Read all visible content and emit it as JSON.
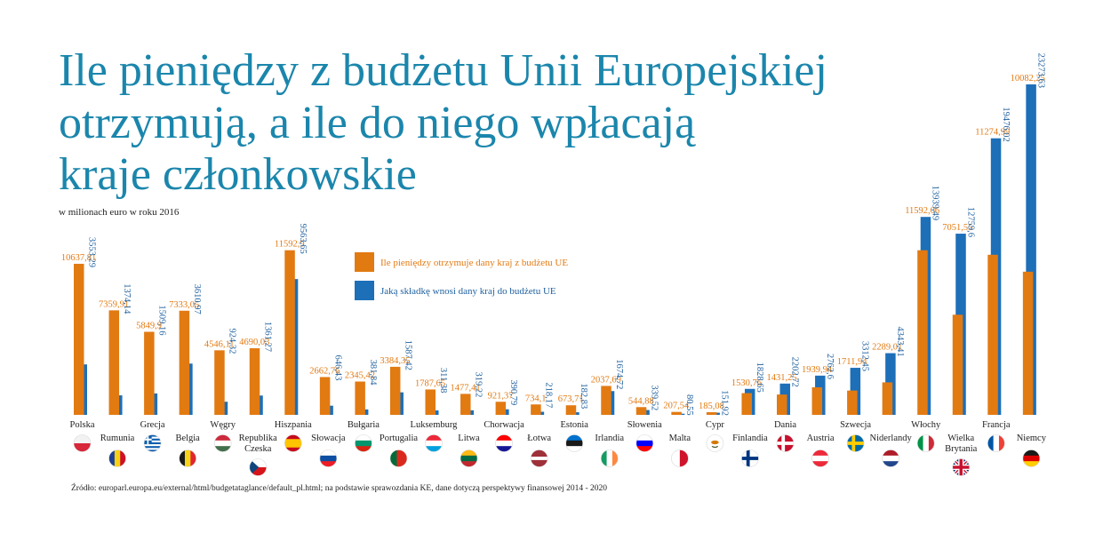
{
  "chart_data": {
    "type": "bar",
    "title_lines": [
      "Ile pieniędzy z budżetu Unii Europejskiej",
      "otrzymują, a ile do niego wpłacają",
      "kraje członkowskie"
    ],
    "subtitle": "w milionach euro w roku 2016",
    "legend": [
      {
        "label": "Ile pieniędzy otrzymuje dany kraj z budżetu UE",
        "color": "#e27a12"
      },
      {
        "label": "Jaką składkę wnosi dany kraj do budżetu UE",
        "color": "#1d6fb8"
      }
    ],
    "source": "Źródło: europarl.europa.eu/external/html/budgetataglance/default_pl.html; na podstawie sprawozdania KE, dane dotyczą perspektywy finansowej 2014 - 2020",
    "colors": {
      "received": "#e27a12",
      "contributed": "#1d6fb8",
      "title": "#1b86ac"
    },
    "categories": [
      {
        "name": "Polska",
        "name_lines": [
          "Polska"
        ],
        "received": 10637.81,
        "contributed": 3553.29,
        "received_label": "10637,81",
        "contributed_label": "3553,29",
        "flag": "poland-flag-icon"
      },
      {
        "name": "Rumunia",
        "name_lines": [
          "Rumunia"
        ],
        "received": 7359.91,
        "contributed": 1374.14,
        "received_label": "7359,91",
        "contributed_label": "1374,14",
        "flag": "romania-flag-icon"
      },
      {
        "name": "Grecja",
        "name_lines": [
          "Grecja"
        ],
        "received": 5849.9,
        "contributed": 1509.16,
        "received_label": "5849,9",
        "contributed_label": "1509,16",
        "flag": "greece-flag-icon"
      },
      {
        "name": "Belgia",
        "name_lines": [
          "Belgia"
        ],
        "received": 7333.05,
        "contributed": 3610.97,
        "received_label": "7333,05",
        "contributed_label": "3610,97",
        "flag": "belgium-flag-icon"
      },
      {
        "name": "Węgry",
        "name_lines": [
          "Węgry"
        ],
        "received": 4546.11,
        "contributed": 924.32,
        "received_label": "4546,11",
        "contributed_label": "924,32",
        "flag": "hungary-flag-icon"
      },
      {
        "name": "Republika Czeska",
        "name_lines": [
          "Republika",
          "Czeska"
        ],
        "received": 4690.03,
        "contributed": 1361.27,
        "received_label": "4690,03",
        "contributed_label": "1361,27",
        "flag": "czech-flag-icon"
      },
      {
        "name": "Hiszpania",
        "name_lines": [
          "Hiszpania"
        ],
        "received": 11592.9,
        "contributed": 9563.65,
        "received_label": "11592,9",
        "contributed_label": "9563,65",
        "flag": "spain-flag-icon"
      },
      {
        "name": "Słowacja",
        "name_lines": [
          "Słowacja"
        ],
        "received": 2662.76,
        "contributed": 646.43,
        "received_label": "2662,76",
        "contributed_label": "646,43",
        "flag": "slovakia-flag-icon"
      },
      {
        "name": "Bułgaria",
        "name_lines": [
          "Bułgaria"
        ],
        "received": 2345.42,
        "contributed": 381.84,
        "received_label": "2345,42",
        "contributed_label": "381,84",
        "flag": "bulgaria-flag-icon"
      },
      {
        "name": "Portugalia",
        "name_lines": [
          "Portugalia"
        ],
        "received": 3384.35,
        "contributed": 1587.42,
        "received_label": "3384,35",
        "contributed_label": "1587,42",
        "flag": "portugal-flag-icon"
      },
      {
        "name": "Luksemburg",
        "name_lines": [
          "Luksemburg"
        ],
        "received": 1787.65,
        "contributed": 311.38,
        "received_label": "1787,65",
        "contributed_label": "311,38",
        "flag": "luxembourg-flag-icon"
      },
      {
        "name": "Litwa",
        "name_lines": [
          "Litwa"
        ],
        "received": 1477.41,
        "contributed": 319.22,
        "received_label": "1477,41",
        "contributed_label": "319,22",
        "flag": "lithuania-flag-icon"
      },
      {
        "name": "Chorwacja",
        "name_lines": [
          "Chorwacja"
        ],
        "received": 921.37,
        "contributed": 390.79,
        "received_label": "921,37",
        "contributed_label": "390,79",
        "flag": "croatia-flag-icon"
      },
      {
        "name": "Łotwa",
        "name_lines": [
          "Łotwa"
        ],
        "received": 734.1,
        "contributed": 218.17,
        "received_label": "734,1",
        "contributed_label": "218,17",
        "flag": "latvia-flag-icon"
      },
      {
        "name": "Estonia",
        "name_lines": [
          "Estonia"
        ],
        "received": 673.71,
        "contributed": 182.83,
        "received_label": "673,71",
        "contributed_label": "182,83",
        "flag": "estonia-flag-icon"
      },
      {
        "name": "Irlandia",
        "name_lines": [
          "Irlandia"
        ],
        "received": 2037.69,
        "contributed": 1674.72,
        "received_label": "2037,69",
        "contributed_label": "1674,72",
        "flag": "ireland-flag-icon"
      },
      {
        "name": "Słowenia",
        "name_lines": [
          "Słowenia"
        ],
        "received": 544.88,
        "contributed": 339.52,
        "received_label": "544,88",
        "contributed_label": "339,52",
        "flag": "slovenia-flag-icon"
      },
      {
        "name": "Malta",
        "name_lines": [
          "Malta"
        ],
        "received": 207.54,
        "contributed": 80.55,
        "received_label": "207,54",
        "contributed_label": "80,55",
        "flag": "malta-flag-icon"
      },
      {
        "name": "Cypr",
        "name_lines": [
          "Cypr"
        ],
        "received": 185.08,
        "contributed": 151.92,
        "received_label": "185,08",
        "contributed_label": "151,92",
        "flag": "cyprus-flag-icon"
      },
      {
        "name": "Finlandia",
        "name_lines": [
          "Finlandia"
        ],
        "received": 1530.76,
        "contributed": 1828.65,
        "received_label": "1530,76",
        "contributed_label": "1828,65",
        "flag": "finland-flag-icon"
      },
      {
        "name": "Dania",
        "name_lines": [
          "Dania"
        ],
        "received": 1431.25,
        "contributed": 2202.72,
        "received_label": "1431,25",
        "contributed_label": "2202,72",
        "flag": "denmark-flag-icon"
      },
      {
        "name": "Austria",
        "name_lines": [
          "Austria"
        ],
        "received": 1939.94,
        "contributed": 2762.6,
        "received_label": "1939,94",
        "contributed_label": "2762,6",
        "flag": "austria-flag-icon"
      },
      {
        "name": "Szwecja",
        "name_lines": [
          "Szwecja"
        ],
        "received": 1711.94,
        "contributed": 3312.45,
        "received_label": "1711,94",
        "contributed_label": "3312,45",
        "flag": "sweden-flag-icon"
      },
      {
        "name": "Niderlandy",
        "name_lines": [
          "Niderlandy"
        ],
        "received": 2289.01,
        "contributed": 4343.41,
        "received_label": "2289,01",
        "contributed_label": "4343,41",
        "flag": "netherlands-flag-icon"
      },
      {
        "name": "Włochy",
        "name_lines": [
          "Włochy"
        ],
        "received": 11592.06,
        "contributed": 13939.49,
        "received_label": "11592,06",
        "contributed_label": "13939,49",
        "flag": "italy-flag-icon"
      },
      {
        "name": "Wielka Brytania",
        "name_lines": [
          "Wielka",
          "Brytania"
        ],
        "received": 7051.55,
        "contributed": 12759.6,
        "received_label": "7051,55",
        "contributed_label": "12759,6",
        "flag": "uk-flag-icon"
      },
      {
        "name": "Francja",
        "name_lines": [
          "Francja"
        ],
        "received": 11274.99,
        "contributed": 19476.02,
        "received_label": "11274,99",
        "contributed_label": "19476,02",
        "flag": "france-flag-icon"
      },
      {
        "name": "Niemcy",
        "name_lines": [
          "Niemcy"
        ],
        "received": 10082.25,
        "contributed": 23273.63,
        "received_label": "10082,25",
        "contributed_label": "23273,63",
        "flag": "germany-flag-icon"
      }
    ]
  }
}
